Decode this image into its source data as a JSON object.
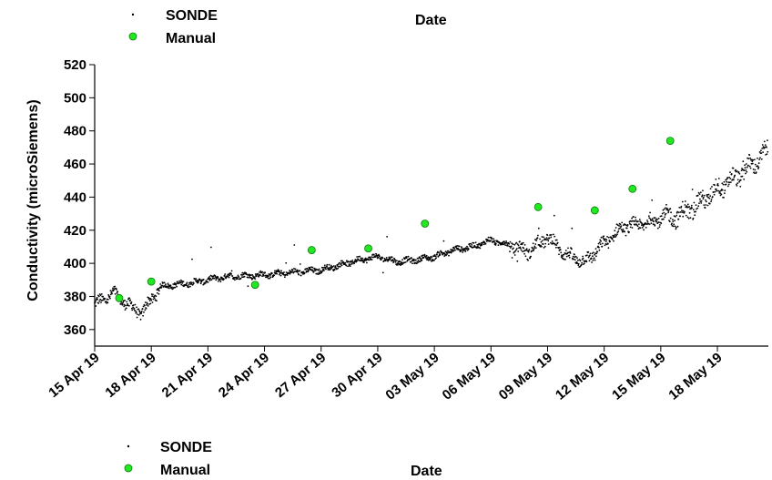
{
  "chart_data": {
    "type": "scatter",
    "xlabel": "Date",
    "ylabel": "Conductivity (microSiemens)",
    "ylim": [
      350,
      520
    ],
    "xlim_days_from_start": [
      0,
      35.7
    ],
    "xlim_dates": [
      "15 Apr 19",
      "21 May 19"
    ],
    "y_ticks": [
      360,
      380,
      400,
      420,
      440,
      460,
      480,
      500,
      520
    ],
    "x_tick_labels": [
      "15 Apr 19",
      "18 Apr 19",
      "21 Apr 19",
      "24 Apr 19",
      "27 Apr 19",
      "30 Apr 19",
      "03 May 19",
      "06 May 19",
      "09 May 19",
      "12 May 19",
      "15 May 19",
      "18 May 19"
    ],
    "x_tick_dates": [
      "2019-04-15",
      "2019-04-18",
      "2019-04-21",
      "2019-04-24",
      "2019-04-27",
      "2019-04-30",
      "2019-05-03",
      "2019-05-06",
      "2019-05-09",
      "2019-05-12",
      "2019-05-15",
      "2019-05-18"
    ],
    "legend_placement": "top-left",
    "grid": false,
    "series": [
      {
        "name": "SONDE",
        "marker": "small black dot",
        "color": "#000000",
        "trend_dates": [
          "2019-04-15",
          "2019-04-16",
          "2019-04-17",
          "2019-04-17 12:00",
          "2019-04-18",
          "2019-04-18 12:00",
          "2019-04-20",
          "2019-04-22",
          "2019-04-24",
          "2019-04-25",
          "2019-04-26",
          "2019-04-27",
          "2019-04-28",
          "2019-04-29",
          "2019-04-30",
          "2019-05-01",
          "2019-05-02",
          "2019-05-03",
          "2019-05-04",
          "2019-05-05",
          "2019-05-06",
          "2019-05-07",
          "2019-05-08",
          "2019-05-09",
          "2019-05-10",
          "2019-05-11",
          "2019-05-12",
          "2019-05-13",
          "2019-05-14",
          "2019-05-15",
          "2019-05-16",
          "2019-05-17",
          "2019-05-18",
          "2019-05-19",
          "2019-05-20",
          "2019-05-20 16:00"
        ],
        "trend_values": [
          375,
          382,
          373,
          370,
          378,
          386,
          388,
          392,
          393,
          394,
          395,
          396,
          399,
          402,
          404,
          401,
          402,
          404,
          408,
          410,
          414,
          411,
          407,
          416,
          405,
          401,
          412,
          422,
          424,
          427,
          429,
          436,
          445,
          452,
          461,
          468
        ]
      },
      {
        "name": "Manual",
        "marker": "green circle",
        "color": "#22e822",
        "x_dates": [
          "2019-04-16 07:12",
          "2019-04-18",
          "2019-04-23 12:00",
          "2019-04-26 12:00",
          "2019-04-29 12:00",
          "2019-05-02 12:00",
          "2019-05-08 12:00",
          "2019-05-11 12:00",
          "2019-05-13 12:00",
          "2019-05-15 12:00"
        ],
        "values": [
          379,
          389,
          387,
          408,
          409,
          424,
          434,
          432,
          445,
          474
        ]
      }
    ]
  },
  "legend": {
    "top": {
      "sonde": "SONDE",
      "manual": "Manual"
    },
    "bottom": {
      "sonde": "SONDE",
      "manual": "Manual"
    }
  },
  "titles": {
    "date_top": "Date",
    "date_bottom": "Date"
  },
  "colors": {
    "sonde": "#000000",
    "manual": "#22e822",
    "manual_edge": "#0a7a0a"
  }
}
